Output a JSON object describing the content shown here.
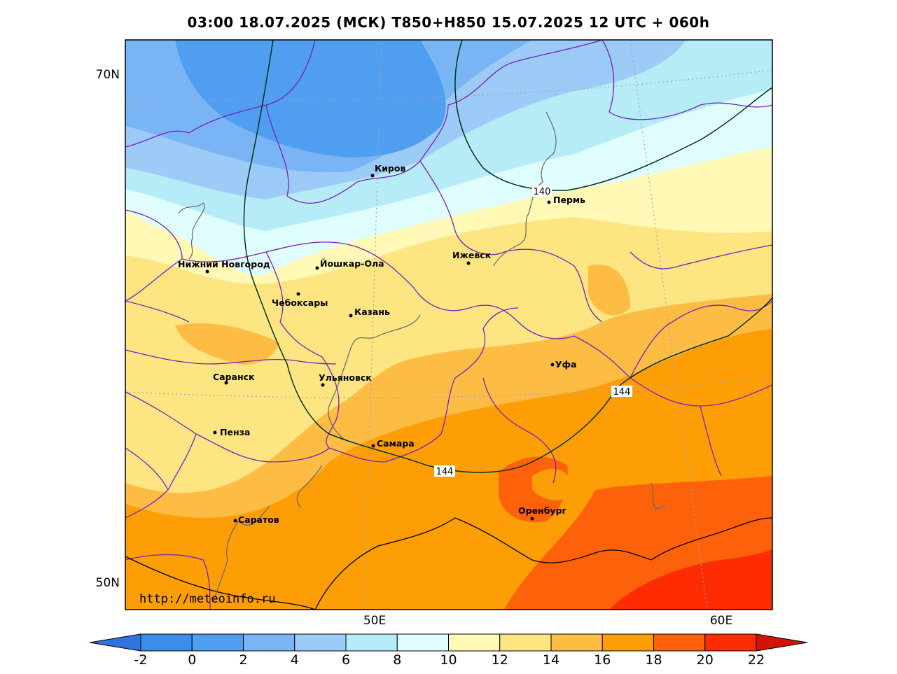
{
  "title": "03:00 18.07.2025 (МСК) T850+H850 15.07.2025 12 UTC + 060h",
  "watermark": "http://meteoinfo.ru",
  "axes": {
    "lat_labels": [
      "70N",
      "50N"
    ],
    "lon_labels": [
      "50E",
      "60E"
    ]
  },
  "cities": [
    {
      "name": "Киров"
    },
    {
      "name": "Пермь"
    },
    {
      "name": "Ижевск"
    },
    {
      "name": "Нижний Новгород"
    },
    {
      "name": "Йошкар-Ола"
    },
    {
      "name": "Чебоксары"
    },
    {
      "name": "Казань"
    },
    {
      "name": "Саранск"
    },
    {
      "name": "Ульяновск"
    },
    {
      "name": "Уфа"
    },
    {
      "name": "Пенза"
    },
    {
      "name": "Самара"
    },
    {
      "name": "Оренбург"
    },
    {
      "name": "Саратов"
    }
  ],
  "contours": {
    "labels": [
      "140",
      "144",
      "144"
    ]
  },
  "colorbar": {
    "ticks": [
      "-2",
      "0",
      "2",
      "4",
      "6",
      "8",
      "10",
      "12",
      "14",
      "16",
      "18",
      "20",
      "22"
    ],
    "colors": [
      "#3a8ee8",
      "#4f9ef0",
      "#79b5f5",
      "#9ccbf7",
      "#b5ecf7",
      "#e0fdfd",
      "#fff9b5",
      "#fde682",
      "#fdbd45",
      "#fd9e06",
      "#fd620a",
      "#fd2c02"
    ],
    "under_color": "#2f74e0",
    "over_color": "#d01406"
  }
}
